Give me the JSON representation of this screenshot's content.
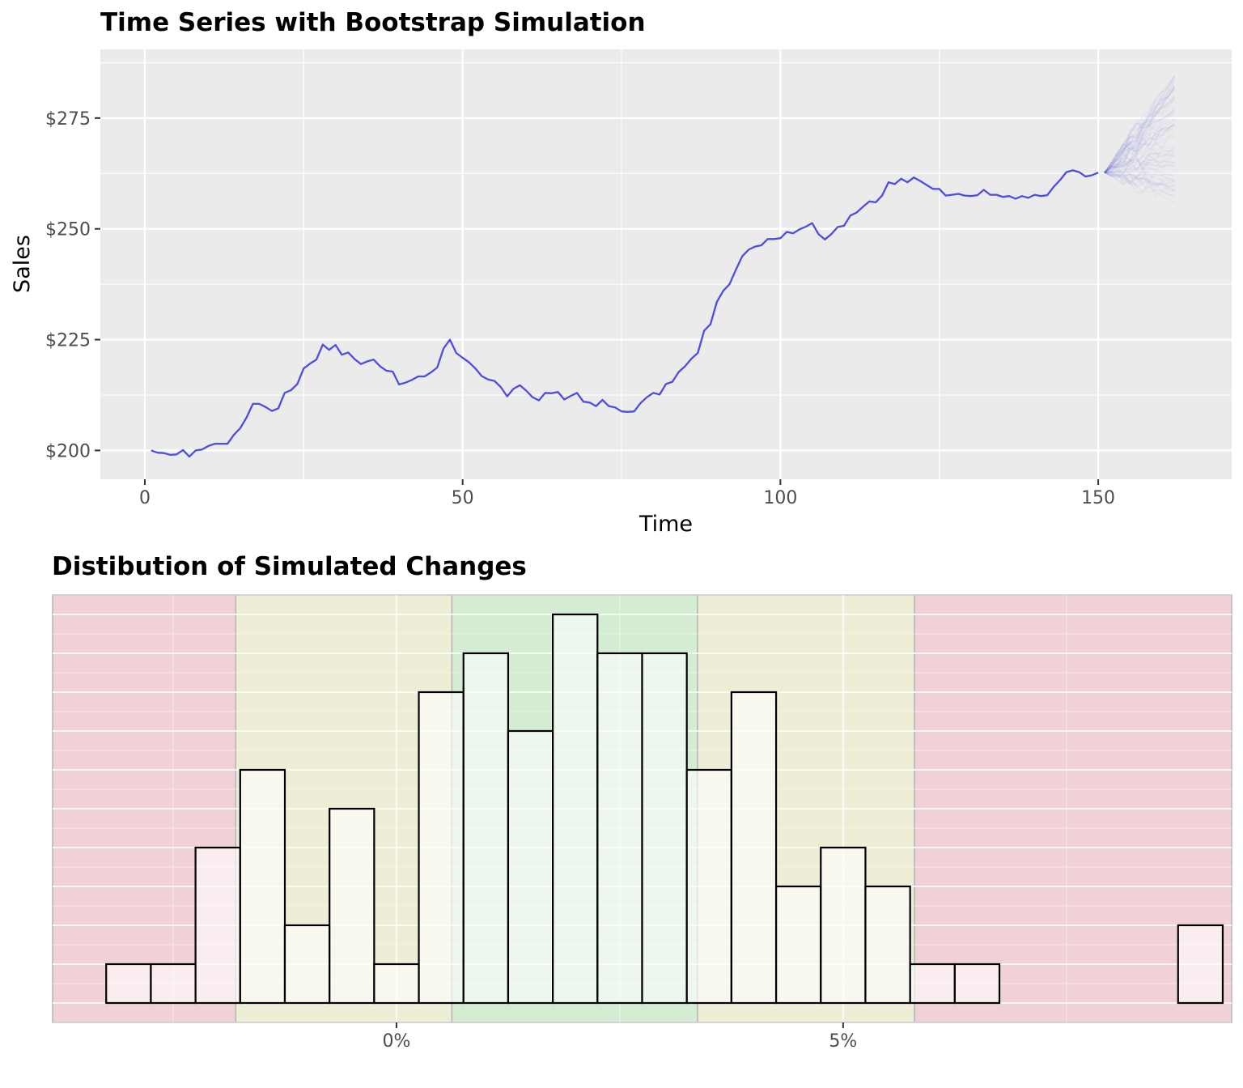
{
  "chart_data": [
    {
      "type": "line",
      "title": "Time Series with Bootstrap Simulation",
      "xlabel": "Time",
      "ylabel": "Sales",
      "xlim": [
        -7,
        171
      ],
      "ylim": [
        193.5,
        290.5
      ],
      "x_ticks": [
        0,
        50,
        100,
        150
      ],
      "y_ticks": [
        200,
        225,
        250,
        275
      ],
      "y_tick_labels": [
        "$200",
        "$225",
        "$250",
        "$275"
      ],
      "grid": true,
      "colors": {
        "line": "#4d4ddf",
        "simulation": "#4d4ddf",
        "panel": "#ebebeb"
      },
      "series": [
        {
          "x_start": 1,
          "x_end": 151,
          "values": [
            200.0,
            199.5,
            199.4,
            199.0,
            199.1,
            200.1,
            198.6,
            200.0,
            200.2,
            201.0,
            201.5,
            201.5,
            201.5,
            203.5,
            205.0,
            207.4,
            210.5,
            210.5,
            209.8,
            208.9,
            209.5,
            213.0,
            213.6,
            215.0,
            218.5,
            219.6,
            220.5,
            223.9,
            222.7,
            223.8,
            221.6,
            222.1,
            220.6,
            219.5,
            220.1,
            220.5,
            219.0,
            218.0,
            217.8,
            214.9,
            215.3,
            215.9,
            216.7,
            216.7,
            217.6,
            218.7,
            223.0,
            225.0,
            222.0,
            220.9,
            219.9,
            218.5,
            216.8,
            216.0,
            215.7,
            214.3,
            212.2,
            213.9,
            214.7,
            213.5,
            212.0,
            211.3,
            213.0,
            212.9,
            213.2,
            211.5,
            212.3,
            213.0,
            211.0,
            210.8,
            210.0,
            211.4,
            210.0,
            209.7,
            208.8,
            208.7,
            208.8,
            210.7,
            212.0,
            213.0,
            212.6,
            215.0,
            215.5,
            217.7,
            219.0,
            220.7,
            222.0,
            227.0,
            228.5,
            233.5,
            236.0,
            237.5,
            240.8,
            243.8,
            245.3,
            246.0,
            246.3,
            247.7,
            247.7,
            247.9,
            249.3,
            249.0,
            249.9,
            250.5,
            251.3,
            248.8,
            247.6,
            248.8,
            250.4,
            250.7,
            253.0,
            253.7,
            255.0,
            256.2,
            256.0,
            257.5,
            260.5,
            260.1,
            261.3,
            260.5,
            261.6,
            260.8,
            259.9,
            259.0,
            259.0,
            257.5,
            257.7,
            257.9,
            257.5,
            257.4,
            257.6,
            258.8,
            257.7,
            257.7,
            257.2,
            257.4,
            256.8,
            257.4,
            257.0,
            257.7,
            257.4,
            257.6,
            259.5,
            261.0,
            262.8,
            263.2,
            262.8,
            261.8,
            262.1,
            262.7
          ]
        }
      ],
      "simulation": {
        "x_start": 151,
        "x_end": 162,
        "start_value": 262.7,
        "paths": 60,
        "end_range": [
          256,
          286
        ]
      }
    },
    {
      "type": "bar",
      "title": "Distibution of Simulated Changes",
      "xlabel": "",
      "ylabel": "",
      "x_ticks": [
        0,
        5
      ],
      "x_tick_labels": [
        "0%",
        "5%"
      ],
      "xlim": [
        -3.85,
        9.35
      ],
      "ylim": [
        -0.5,
        10.5
      ],
      "grid": true,
      "bin_width": 0.5,
      "bin_starts": [
        -3.25,
        -2.75,
        -2.25,
        -1.75,
        -1.25,
        -0.75,
        -0.25,
        0.25,
        0.75,
        1.25,
        1.75,
        2.25,
        2.75,
        3.25,
        3.75,
        4.25,
        4.75,
        5.25,
        5.75,
        6.25,
        6.75,
        7.25,
        7.75,
        8.25,
        8.75
      ],
      "values": [
        1,
        1,
        4,
        6,
        2,
        5,
        1,
        8,
        9,
        7,
        10,
        9,
        9,
        6,
        8,
        3,
        4,
        3,
        1,
        1,
        0,
        0,
        0,
        0,
        2
      ],
      "bands": [
        {
          "from": -3.85,
          "to": -1.8,
          "zone": "red"
        },
        {
          "from": -1.8,
          "to": 0.62,
          "zone": "yellow"
        },
        {
          "from": 0.62,
          "to": 3.37,
          "zone": "green"
        },
        {
          "from": 3.37,
          "to": 5.8,
          "zone": "yellow"
        },
        {
          "from": 5.8,
          "to": 9.35,
          "zone": "red"
        }
      ],
      "colors": {
        "red": "#f0d1d6",
        "yellow": "#eeedd5",
        "green": "#d3ecd2",
        "bar_fill": "#ffffff",
        "bar_fill_opacity": 0.6,
        "bar_stroke": "#000000"
      }
    }
  ]
}
